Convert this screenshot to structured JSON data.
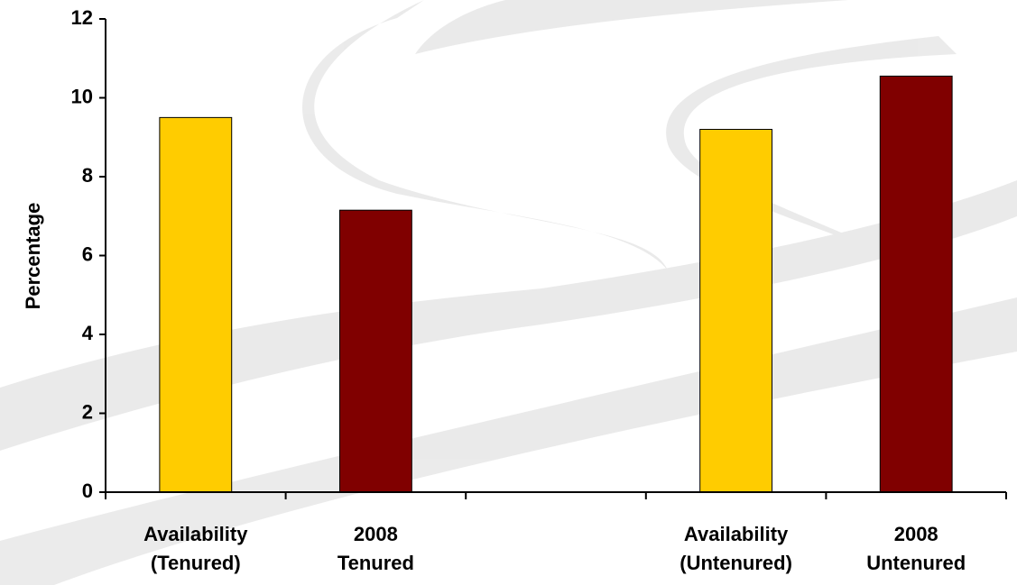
{
  "chart_data": {
    "type": "bar",
    "y_axis_label": "Percentage",
    "categories": [
      [
        "Availability",
        "(Tenured)"
      ],
      [
        "2008",
        "Tenured"
      ],
      null,
      [
        "Availability",
        "(Untenured)"
      ],
      [
        "2008",
        "Untenured"
      ]
    ],
    "values": [
      9.5,
      7.15,
      null,
      9.2,
      10.55
    ],
    "colors": [
      "#FFCC00",
      "#800000",
      null,
      "#FFCC00",
      "#800000"
    ],
    "ylim": [
      0,
      12
    ],
    "yticks": [
      0,
      2,
      4,
      6,
      8,
      10,
      12
    ],
    "grid": false
  }
}
